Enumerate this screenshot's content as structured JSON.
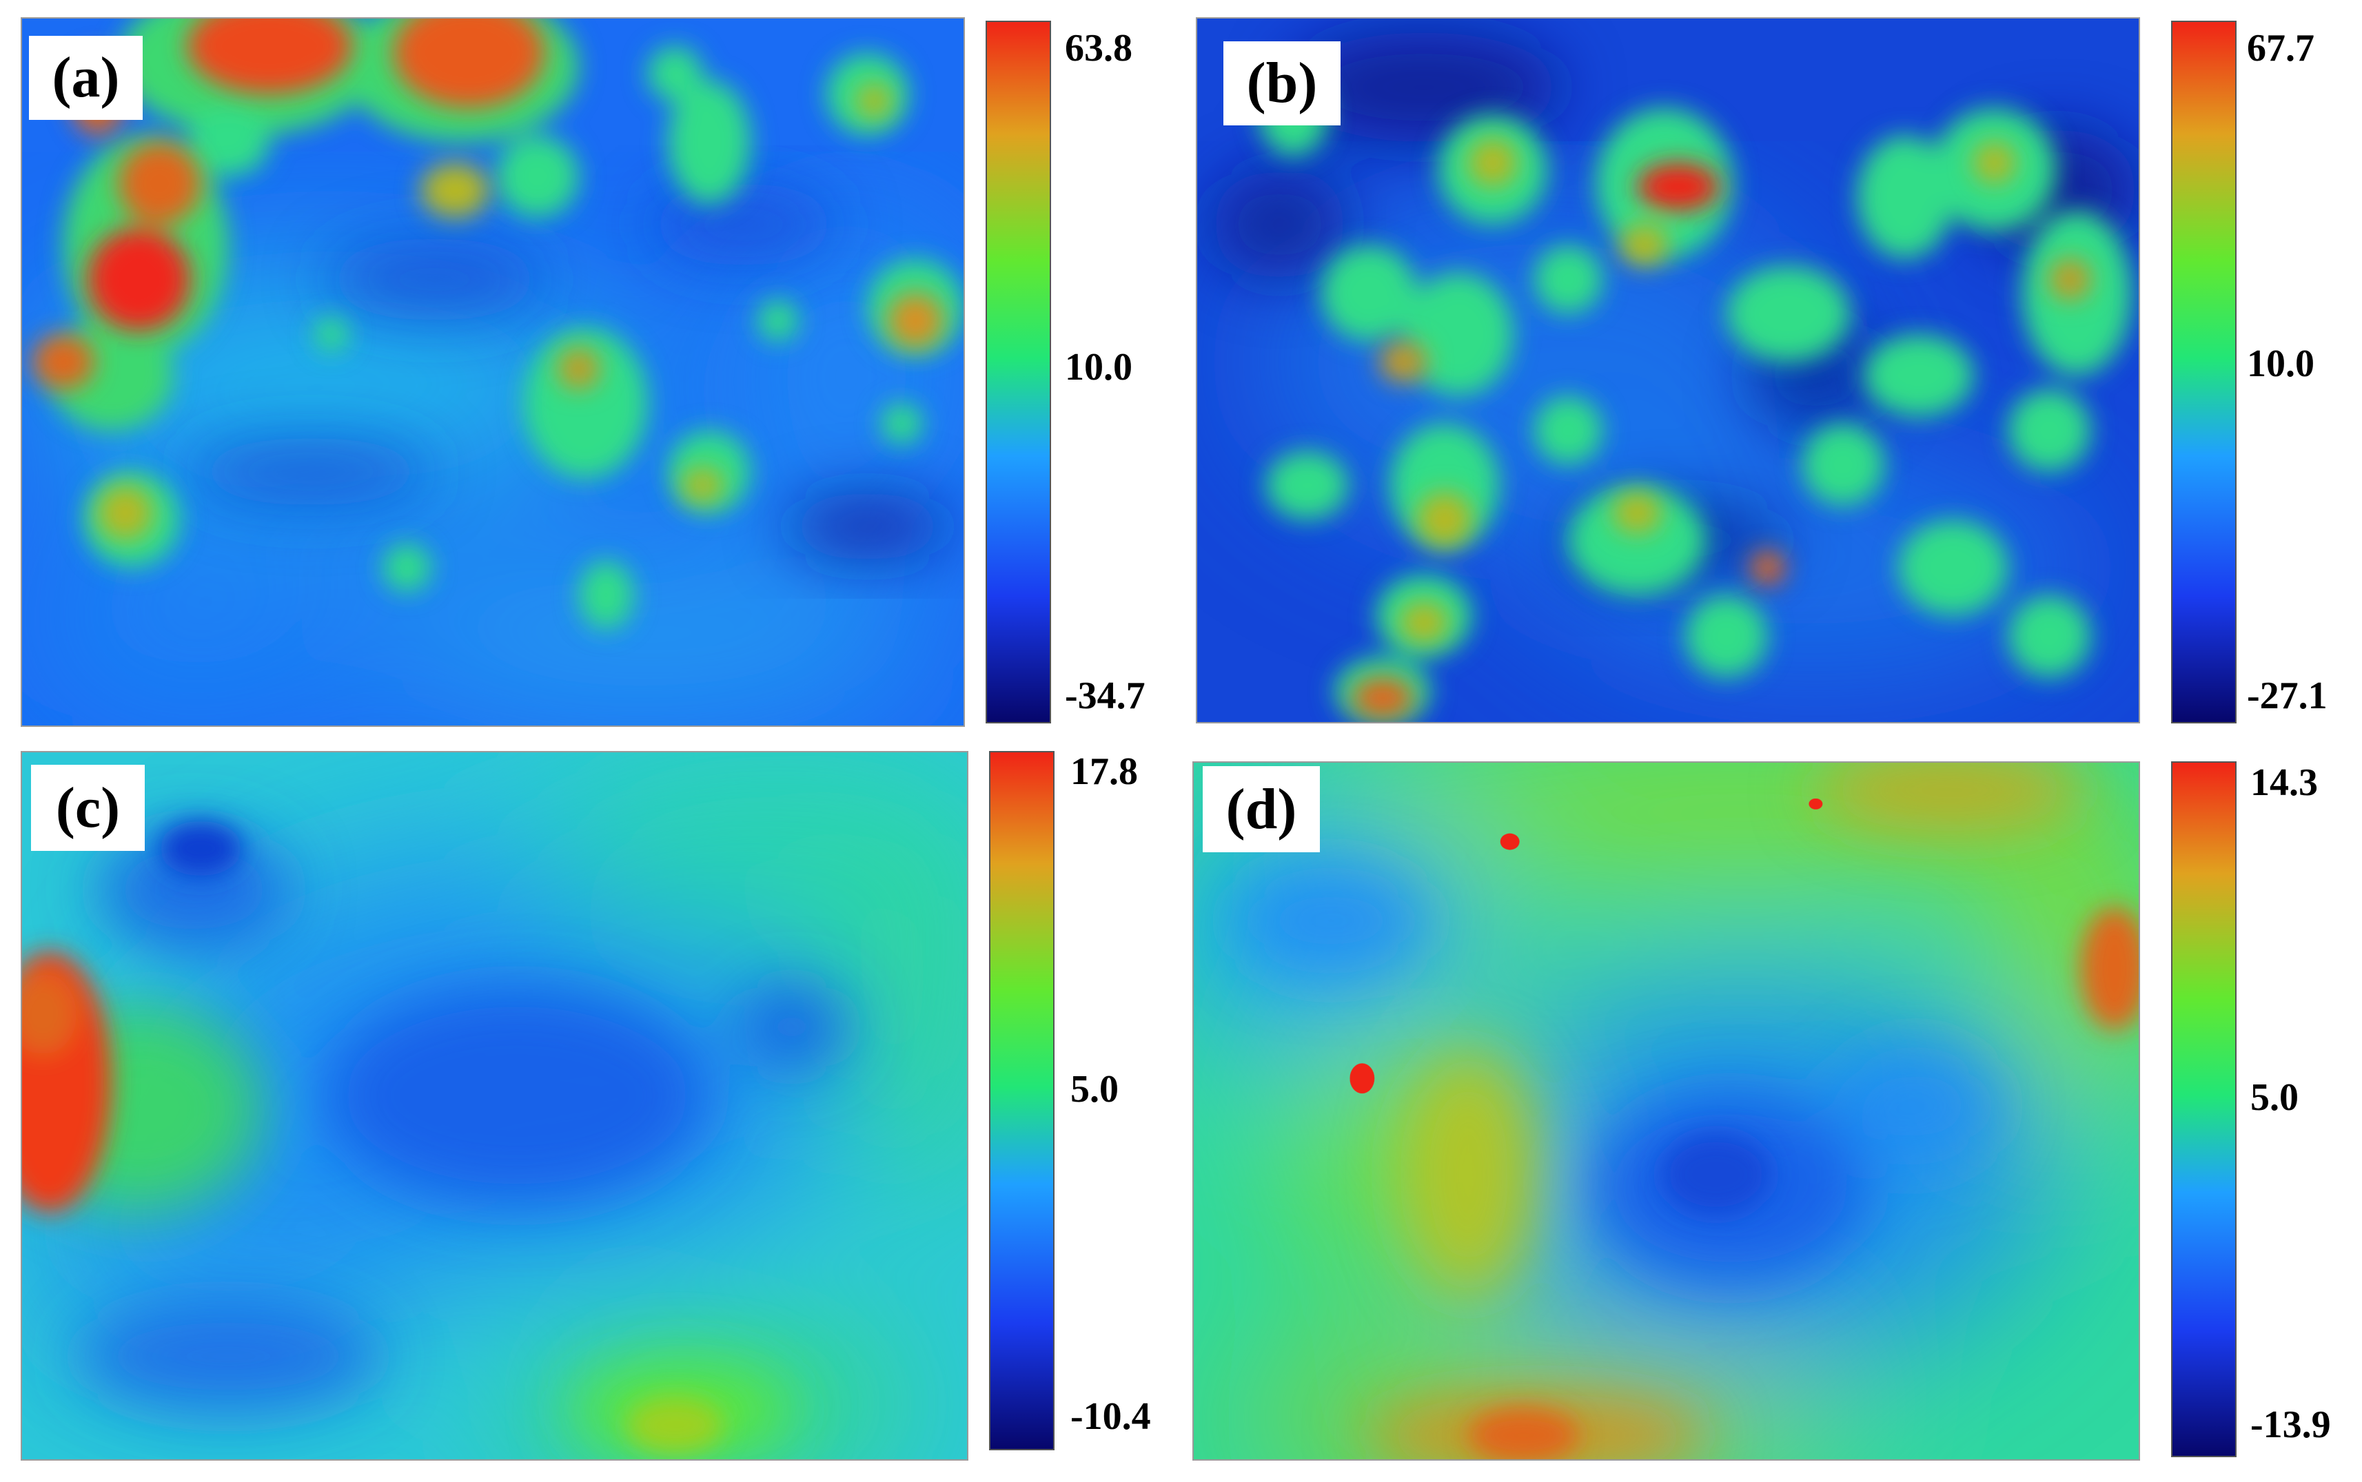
{
  "colors": {
    "scale": [
      "#06066b",
      "#1a3cf0",
      "#1fa0ff",
      "#22e676",
      "#62e830",
      "#e0a21f",
      "#f02416"
    ]
  },
  "panels": [
    {
      "label": "(a)",
      "colorbar": {
        "max": "63.8",
        "mid": "10.0",
        "min": "-34.7"
      }
    },
    {
      "label": "(b)",
      "colorbar": {
        "max": "67.7",
        "mid": "10.0",
        "min": "-27.1"
      }
    },
    {
      "label": "(c)",
      "colorbar": {
        "max": "17.8",
        "mid": "5.0",
        "min": "-10.4"
      }
    },
    {
      "label": "(d)",
      "colorbar": {
        "max": "14.3",
        "mid": "5.0",
        "min": "-13.9"
      }
    }
  ]
}
